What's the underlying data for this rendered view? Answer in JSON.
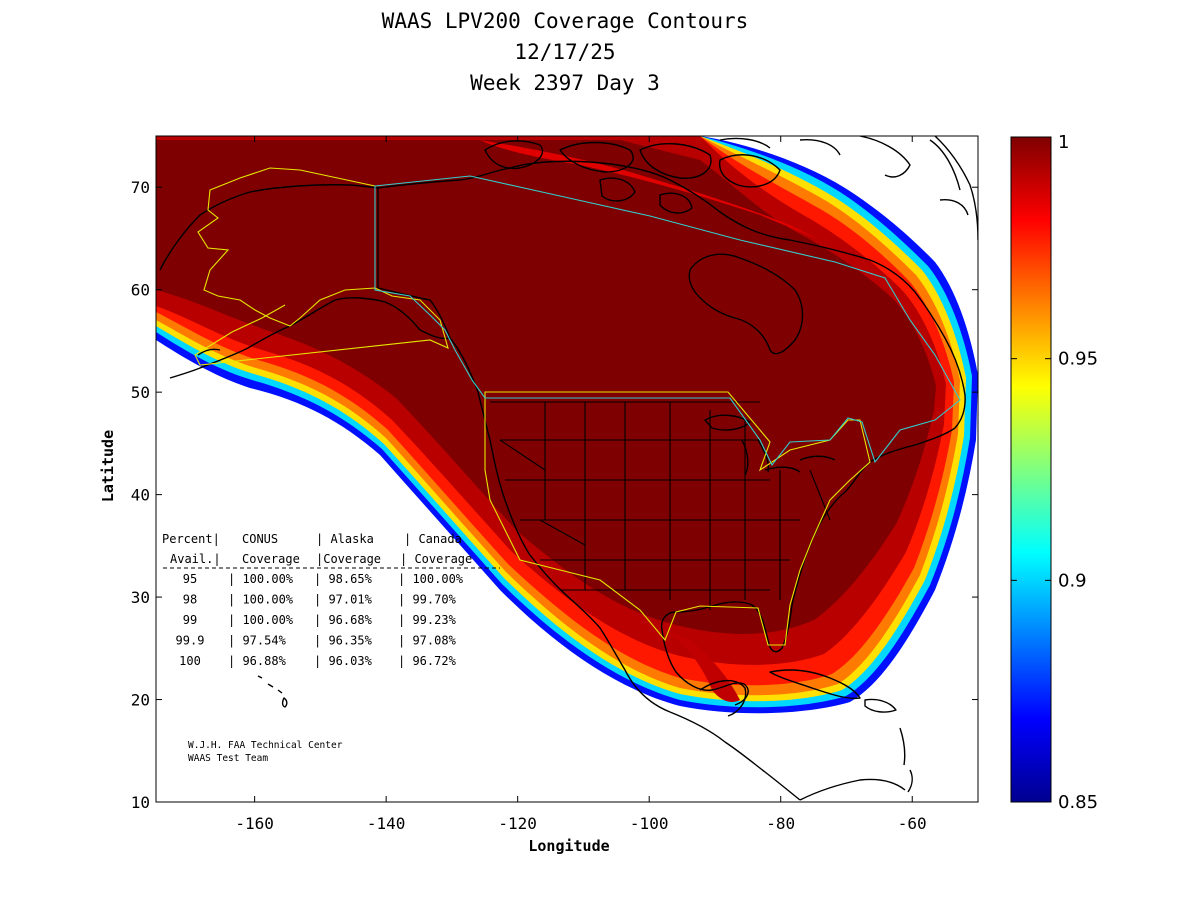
{
  "title": {
    "line1": "WAAS LPV200 Coverage Contours",
    "line2": "12/17/25",
    "line3": "Week 2397 Day 3"
  },
  "axes": {
    "xlabel": "Longitude",
    "ylabel": "Latitude",
    "xlim": [
      -175,
      -50
    ],
    "ylim": [
      10,
      75
    ],
    "xticks": [
      -160,
      -140,
      -120,
      -100,
      -80,
      -60
    ],
    "yticks": [
      10,
      20,
      30,
      40,
      50,
      60,
      70
    ]
  },
  "colorbar": {
    "min": 0.85,
    "max": 1,
    "ticks": [
      "0.85",
      "0.9",
      "0.95",
      "1"
    ],
    "colormap": "jet"
  },
  "coverage_table": {
    "header1": [
      "Percent|",
      "CONUS",
      "| Alaska",
      "| Canada"
    ],
    "header2": [
      "Avail.|",
      "Coverage",
      "|Coverage",
      "| Coverage"
    ],
    "rows": [
      [
        "95",
        "| 100.00%",
        "| 98.65%",
        "| 100.00%"
      ],
      [
        "98",
        "| 100.00%",
        "| 97.01%",
        "| 99.70%"
      ],
      [
        "99",
        "| 100.00%",
        "| 96.68%",
        "| 99.23%"
      ],
      [
        "99.9",
        "| 97.54%",
        "| 96.35%",
        "| 97.08%"
      ],
      [
        "100",
        "| 96.88%",
        "| 96.03%",
        "| 96.72%"
      ]
    ]
  },
  "credit": {
    "line1": "W.J.H. FAA Technical Center",
    "line2": "WAAS Test Team"
  },
  "colors": {
    "full": "#7f0000",
    "boundary_us": "#e6e600",
    "boundary_canada": "#33cccc"
  }
}
